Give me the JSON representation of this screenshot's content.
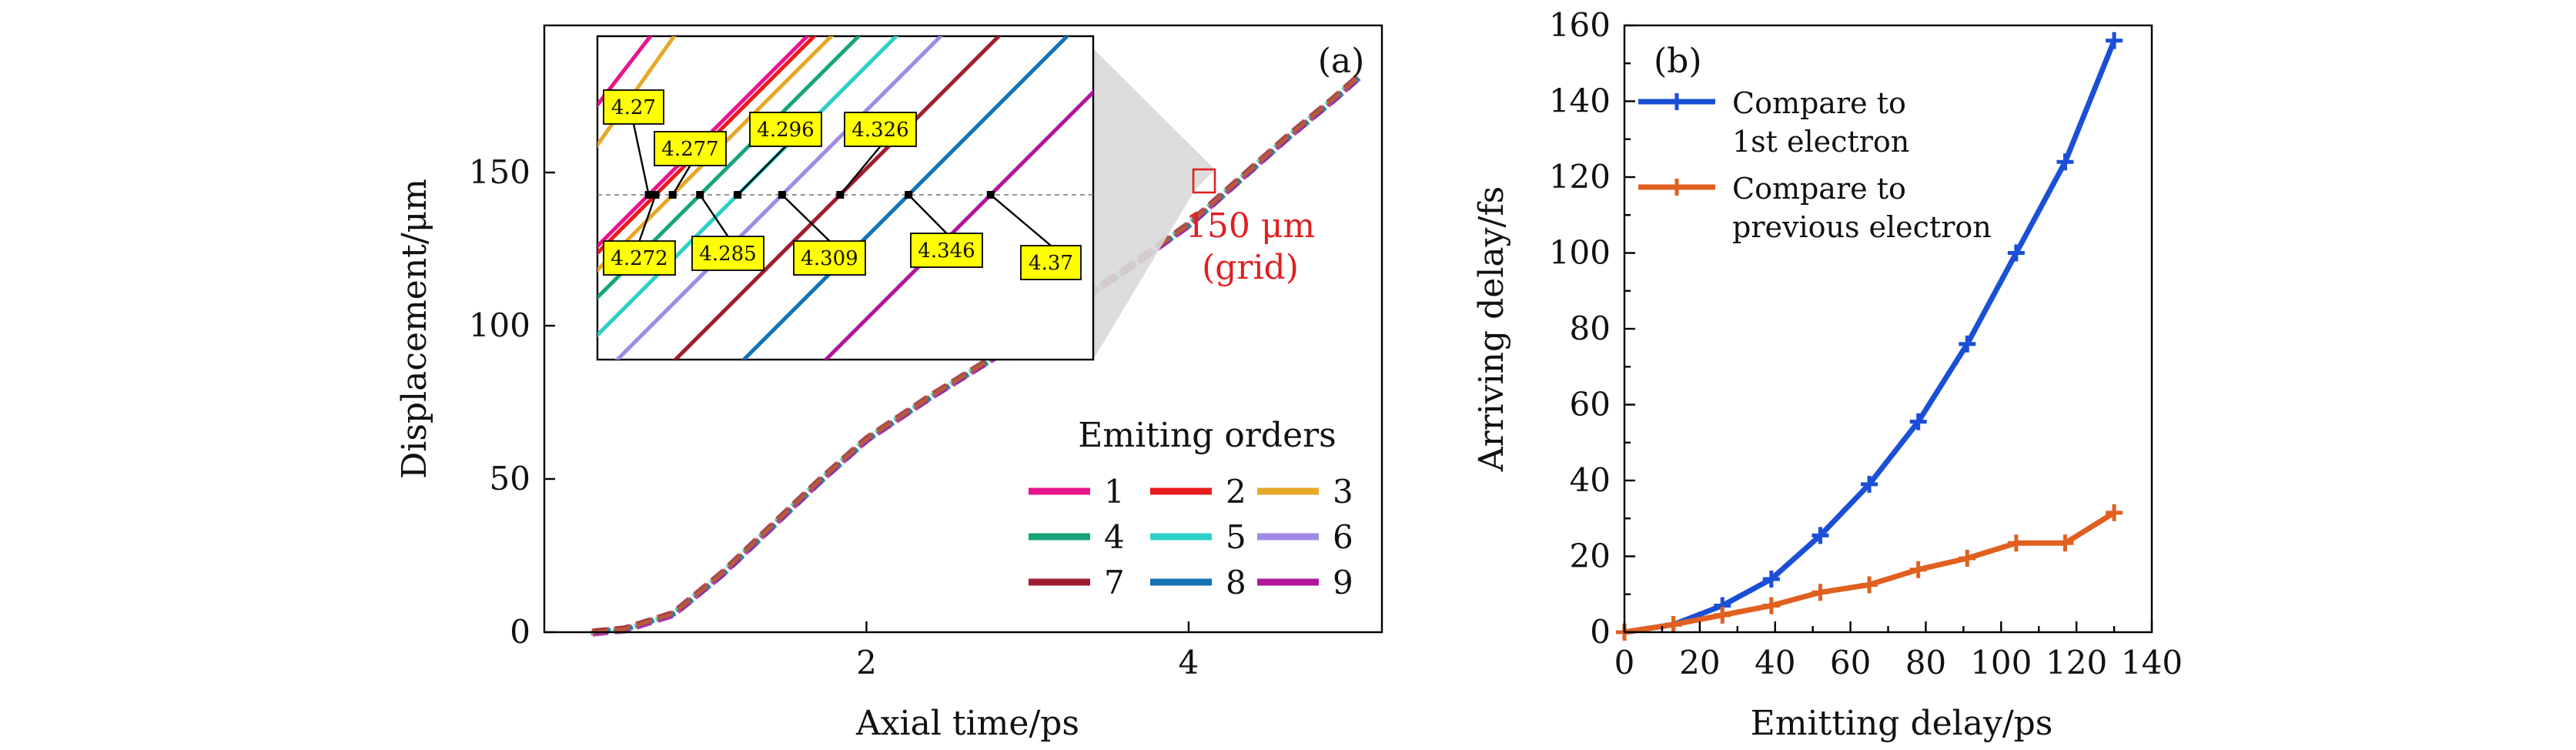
{
  "chart_data": [
    {
      "panel": "(a)",
      "type": "line",
      "xlabel": "Axial time/ps",
      "ylabel": "Displacement/μm",
      "xlim": [
        0,
        5.2
      ],
      "ylim": [
        0,
        198
      ],
      "xticks": [
        2,
        4
      ],
      "yticks": [
        0,
        50,
        100,
        150
      ],
      "legend_title": "Emiting orders",
      "series": [
        {
          "name": "1",
          "color": "#e8148c"
        },
        {
          "name": "2",
          "color": "#e81c1c"
        },
        {
          "name": "3",
          "color": "#e6a829"
        },
        {
          "name": "4",
          "color": "#16a37a"
        },
        {
          "name": "5",
          "color": "#2ed1c9"
        },
        {
          "name": "6",
          "color": "#a08ae6"
        },
        {
          "name": "7",
          "color": "#a11c30"
        },
        {
          "name": "8",
          "color": "#1373b5"
        },
        {
          "name": "9",
          "color": "#b0169e"
        }
      ],
      "trajectory": {
        "x": [
          0.3,
          0.5,
          0.8,
          1.1,
          1.4,
          1.7,
          2.0,
          2.4,
          2.8,
          3.2,
          3.6,
          4.0,
          4.3,
          4.6,
          4.9,
          5.05
        ],
        "y": [
          0,
          1,
          6,
          19,
          34,
          49,
          63,
          77,
          90,
          104,
          118,
          133,
          147,
          161,
          174,
          181
        ]
      },
      "annotation": {
        "line1": "150 μm",
        "line2": "(grid)",
        "color": "#e02020"
      },
      "inset": {
        "crossing_y": 150,
        "top_labels": [
          "4.27",
          "4.277",
          "4.296",
          "4.326"
        ],
        "bottom_labels": [
          "4.272",
          "4.285",
          "4.309",
          "4.346",
          "4.37"
        ],
        "crossing_times": [
          4.27,
          4.272,
          4.277,
          4.285,
          4.296,
          4.309,
          4.326,
          4.346,
          4.37
        ]
      }
    },
    {
      "panel": "(b)",
      "type": "line",
      "xlabel": "Emitting delay/ps",
      "ylabel": "Arriving delay/fs",
      "xlim": [
        0,
        140
      ],
      "ylim": [
        0,
        160
      ],
      "xticks": [
        0,
        20,
        40,
        60,
        80,
        100,
        120,
        140
      ],
      "yticks": [
        0,
        20,
        40,
        60,
        80,
        100,
        120,
        140,
        160
      ],
      "series": [
        {
          "name": "Compare to 1st electron",
          "legend_line1": "Compare to",
          "legend_line2": "1st electron",
          "color": "#1a4fd6",
          "x": [
            0,
            13,
            26,
            39,
            52,
            65,
            78,
            91,
            104,
            117,
            130
          ],
          "y": [
            0,
            2,
            7,
            14,
            25.5,
            39,
            55.5,
            76,
            100,
            124,
            156
          ]
        },
        {
          "name": "Compare to previous electron",
          "legend_line1": "Compare to",
          "legend_line2": "previous electron",
          "color": "#e06020",
          "x": [
            0,
            13,
            26,
            39,
            52,
            65,
            78,
            91,
            104,
            117,
            130
          ],
          "y": [
            0,
            2,
            4.5,
            7,
            10.5,
            12.5,
            16.5,
            19.5,
            23.5,
            23.5,
            31.5
          ]
        }
      ]
    }
  ]
}
